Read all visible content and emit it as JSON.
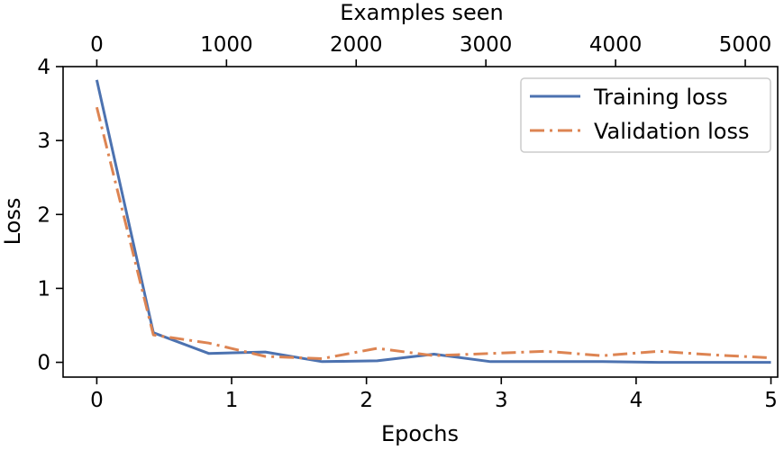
{
  "chart_data": {
    "type": "line",
    "title": "",
    "xlabel": "Epochs",
    "ylabel": "Loss",
    "x2label": "Examples seen",
    "xlim": [
      -0.25,
      5.05
    ],
    "ylim": [
      -0.2,
      4.0
    ],
    "x2lim": [
      -260,
      5250
    ],
    "xticks": [
      "0",
      "1",
      "2",
      "3",
      "4",
      "5"
    ],
    "yticks": [
      "0",
      "1",
      "2",
      "3",
      "4"
    ],
    "x2ticks": [
      "0",
      "1000",
      "2000",
      "3000",
      "4000",
      "5000"
    ],
    "grid": false,
    "legend": "top-right",
    "series": [
      {
        "name": "Training loss",
        "color": "#4c72b0",
        "linestyle": "solid",
        "x": [
          0,
          0.42,
          0.83,
          1.25,
          1.67,
          2.08,
          2.5,
          2.92,
          3.33,
          3.75,
          4.17,
          4.58,
          5.0
        ],
        "y": [
          3.82,
          0.4,
          0.12,
          0.14,
          0.01,
          0.02,
          0.11,
          0.01,
          0.01,
          0.01,
          0.0,
          0.0,
          0.0
        ]
      },
      {
        "name": "Validation loss",
        "color": "#dd8452",
        "linestyle": "dashdot",
        "x": [
          0,
          0.42,
          0.83,
          1.25,
          1.67,
          2.08,
          2.5,
          2.92,
          3.33,
          3.75,
          4.17,
          4.58,
          5.0
        ],
        "y": [
          3.45,
          0.37,
          0.26,
          0.08,
          0.05,
          0.19,
          0.09,
          0.12,
          0.15,
          0.09,
          0.15,
          0.1,
          0.06
        ]
      }
    ]
  }
}
